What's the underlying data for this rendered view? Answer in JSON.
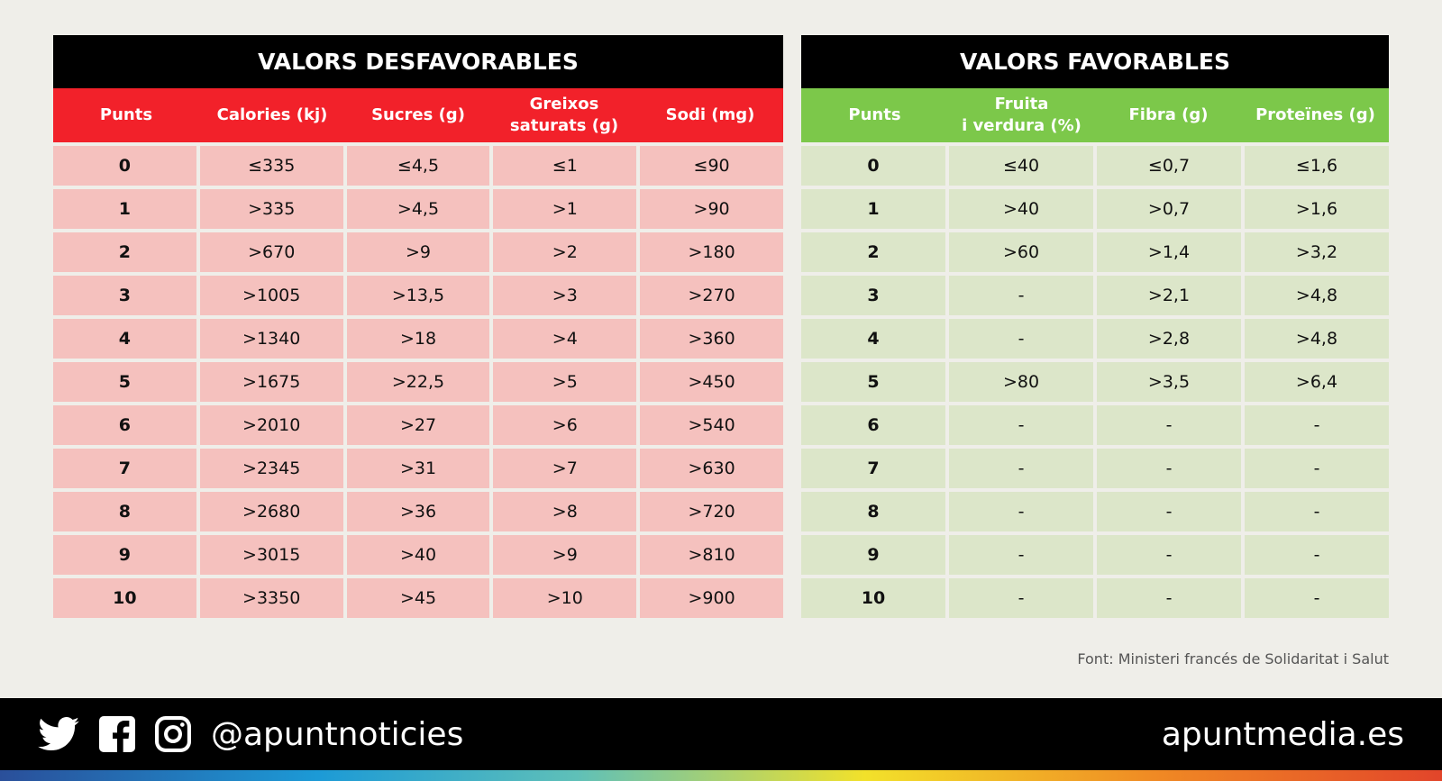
{
  "unfavorable": {
    "title": "VALORS DESFAVORABLES",
    "color": "#f2212a",
    "headers": [
      "Punts",
      "Calories (kj)",
      "Sucres (g)",
      "Greixos\nsaturats (g)",
      "Sodi (mg)"
    ],
    "rows": [
      [
        "0",
        "≤335",
        "≤4,5",
        "≤1",
        "≤90"
      ],
      [
        "1",
        ">335",
        ">4,5",
        ">1",
        ">90"
      ],
      [
        "2",
        ">670",
        ">9",
        ">2",
        ">180"
      ],
      [
        "3",
        ">1005",
        ">13,5",
        ">3",
        ">270"
      ],
      [
        "4",
        ">1340",
        ">18",
        ">4",
        ">360"
      ],
      [
        "5",
        ">1675",
        ">22,5",
        ">5",
        ">450"
      ],
      [
        "6",
        ">2010",
        ">27",
        ">6",
        ">540"
      ],
      [
        "7",
        ">2345",
        ">31",
        ">7",
        ">630"
      ],
      [
        "8",
        ">2680",
        ">36",
        ">8",
        ">720"
      ],
      [
        "9",
        ">3015",
        ">40",
        ">9",
        ">810"
      ],
      [
        "10",
        ">3350",
        ">45",
        ">10",
        ">900"
      ]
    ]
  },
  "favorable": {
    "title": "VALORS FAVORABLES",
    "color": "#7cc84a",
    "headers": [
      "Punts",
      "Fruita\ni verdura (%)",
      "Fibra (g)",
      "Proteïnes (g)"
    ],
    "rows": [
      [
        "0",
        "≤40",
        "≤0,7",
        "≤1,6"
      ],
      [
        "1",
        ">40",
        ">0,7",
        ">1,6"
      ],
      [
        "2",
        ">60",
        ">1,4",
        ">3,2"
      ],
      [
        "3",
        "-",
        ">2,1",
        ">4,8"
      ],
      [
        "4",
        "-",
        ">2,8",
        ">4,8"
      ],
      [
        "5",
        ">80",
        ">3,5",
        ">6,4"
      ],
      [
        "6",
        "-",
        "-",
        "-"
      ],
      [
        "7",
        "-",
        "-",
        "-"
      ],
      [
        "8",
        "-",
        "-",
        "-"
      ],
      [
        "9",
        "-",
        "-",
        "-"
      ],
      [
        "10",
        "-",
        "-",
        "-"
      ]
    ]
  },
  "source": "Font: Ministeri francés de Solidaritat i Salut",
  "footer": {
    "icons": [
      "twitter-icon",
      "facebook-icon",
      "instagram-icon"
    ],
    "handle": "@apuntnoticies",
    "site": "apuntmedia.es"
  }
}
